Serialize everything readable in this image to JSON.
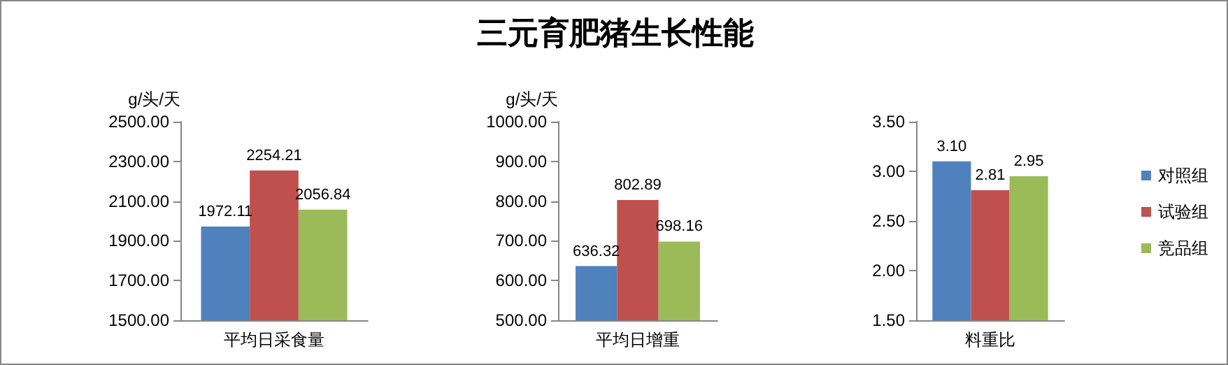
{
  "chart_data": [
    {
      "type": "bar",
      "categories": [
        "平均日采食量"
      ],
      "ylabel": "g/头/天",
      "ylim": [
        1500,
        2500
      ],
      "yticks": [
        {
          "value": 1500,
          "label": "1500.00"
        },
        {
          "value": 1700,
          "label": "1700.00"
        },
        {
          "value": 1900,
          "label": "1900.00"
        },
        {
          "value": 2100,
          "label": "2100.00"
        },
        {
          "value": 2300,
          "label": "2300.00"
        },
        {
          "value": 2500,
          "label": "2500.00"
        }
      ],
      "data_labels": true,
      "grid": false,
      "legend": false,
      "series": [
        {
          "color": "#4f81bd",
          "values": [
            1972.11
          ]
        },
        {
          "color": "#c0504d",
          "values": [
            2254.21
          ]
        },
        {
          "color": "#9bbb59",
          "values": [
            2056.84
          ]
        }
      ]
    },
    {
      "type": "bar",
      "title": "三元育肥猪生长性能",
      "categories": [
        "平均日增重"
      ],
      "ylabel": "g/头/天",
      "ylim": [
        500,
        1000
      ],
      "yticks": [
        {
          "value": 500,
          "label": "500.00"
        },
        {
          "value": 600,
          "label": "600.00"
        },
        {
          "value": 700,
          "label": "700.00"
        },
        {
          "value": 800,
          "label": "800.00"
        },
        {
          "value": 900,
          "label": "900.00"
        },
        {
          "value": 1000,
          "label": "1000.00"
        }
      ],
      "data_labels": true,
      "grid": false,
      "legend": false,
      "series": [
        {
          "color": "#4f81bd",
          "values": [
            636.32
          ]
        },
        {
          "color": "#c0504d",
          "values": [
            802.89
          ]
        },
        {
          "color": "#9bbb59",
          "values": [
            698.16
          ]
        }
      ]
    },
    {
      "type": "bar",
      "categories": [
        "料重比"
      ],
      "ylim": [
        1.5,
        3.5
      ],
      "yticks": [
        {
          "value": 1.5,
          "label": "1.50"
        },
        {
          "value": 2,
          "label": "2.00"
        },
        {
          "value": 2.5,
          "label": "2.50"
        },
        {
          "value": 3,
          "label": "3.00"
        },
        {
          "value": 3.5,
          "label": "3.50"
        }
      ],
      "grid": false,
      "legend": "right",
      "series": [
        {
          "name": "对照组",
          "color": "#4f81bd",
          "values": [
            3.1
          ],
          "value_labels": [
            "3.10"
          ]
        },
        {
          "name": "试验组",
          "color": "#c0504d",
          "values": [
            2.81
          ],
          "value_labels": [
            "2.81"
          ]
        },
        {
          "name": "竞品组",
          "color": "#9bbb59",
          "values": [
            2.95
          ],
          "value_labels": [
            "2.95"
          ]
        }
      ]
    }
  ]
}
